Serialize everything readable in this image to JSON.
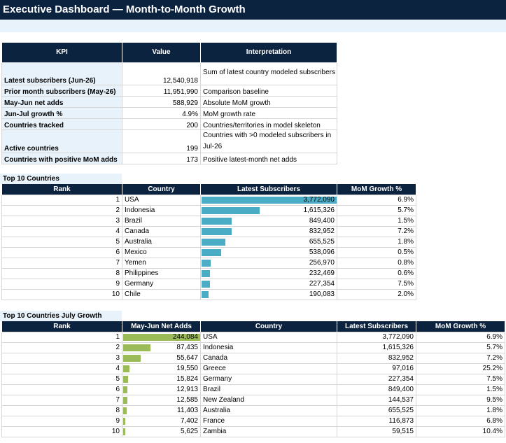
{
  "title": "Executive Dashboard — Month-to-Month Growth",
  "kpi": {
    "headers": [
      "KPI",
      "Value",
      "Interpretation"
    ],
    "rows": [
      {
        "label": "Latest subscribers (Jun-26)",
        "value": "12,540,918",
        "note": "Sum of latest country modeled subscribers"
      },
      {
        "label": "Prior month subscribers (May-26)",
        "value": "11,951,990",
        "note": "Comparison baseline"
      },
      {
        "label": "May-Jun net adds",
        "value": "588,929",
        "note": "Absolute MoM growth"
      },
      {
        "label": "Jun-Jul growth %",
        "value": "4.9%",
        "note": "MoM growth rate"
      },
      {
        "label": "Countries tracked",
        "value": "200",
        "note": "Countries/territories in model skeleton"
      },
      {
        "label": "Active countries",
        "value": "199",
        "note": "Countries with >0 modeled subscribers in",
        "note2": "Jul-26"
      },
      {
        "label": "Countries with positive MoM adds",
        "value": "173",
        "note": "Positive latest-month net adds"
      }
    ]
  },
  "top10": {
    "title": "Top 10 Countries",
    "headers": [
      "Rank",
      "Country",
      "Latest Subscribers",
      "MoM Growth %"
    ],
    "rows": [
      {
        "rank": "1",
        "country": "USA",
        "subs": "3,772,090",
        "subs_value": 3772090,
        "growth": "6.9%"
      },
      {
        "rank": "2",
        "country": "Indonesia",
        "subs": "1,615,326",
        "subs_value": 1615326,
        "growth": "5.7%"
      },
      {
        "rank": "3",
        "country": "Brazil",
        "subs": "849,400",
        "subs_value": 849400,
        "growth": "1.5%"
      },
      {
        "rank": "4",
        "country": "Canada",
        "subs": "832,952",
        "subs_value": 832952,
        "growth": "7.2%"
      },
      {
        "rank": "5",
        "country": "Australia",
        "subs": "655,525",
        "subs_value": 655525,
        "growth": "1.8%"
      },
      {
        "rank": "6",
        "country": "Mexico",
        "subs": "538,096",
        "subs_value": 538096,
        "growth": "0.5%"
      },
      {
        "rank": "7",
        "country": "Yemen",
        "subs": "256,970",
        "subs_value": 256970,
        "growth": "0.8%"
      },
      {
        "rank": "8",
        "country": "Philippines",
        "subs": "232,469",
        "subs_value": 232469,
        "growth": "0.6%"
      },
      {
        "rank": "9",
        "country": "Germany",
        "subs": "227,354",
        "subs_value": 227354,
        "growth": "7.5%"
      },
      {
        "rank": "10",
        "country": "Chile",
        "subs": "190,083",
        "subs_value": 190083,
        "growth": "2.0%"
      }
    ]
  },
  "growth10": {
    "title": "Top 10 Countries July Growth",
    "headers": [
      "Rank",
      "May-Jun Net Adds",
      "Country",
      "Latest Subscribers",
      "MoM Growth %"
    ],
    "rows": [
      {
        "rank": "1",
        "adds": "244,084",
        "adds_value": 244084,
        "country": "USA",
        "subs": "3,772,090",
        "growth": "6.9%"
      },
      {
        "rank": "2",
        "adds": "87,435",
        "adds_value": 87435,
        "country": "Indonesia",
        "subs": "1,615,326",
        "growth": "5.7%"
      },
      {
        "rank": "3",
        "adds": "55,647",
        "adds_value": 55647,
        "country": "Canada",
        "subs": "832,952",
        "growth": "7.2%"
      },
      {
        "rank": "4",
        "adds": "19,550",
        "adds_value": 19550,
        "country": "Greece",
        "subs": "97,016",
        "growth": "25.2%"
      },
      {
        "rank": "5",
        "adds": "15,824",
        "adds_value": 15824,
        "country": "Germany",
        "subs": "227,354",
        "growth": "7.5%"
      },
      {
        "rank": "6",
        "adds": "12,913",
        "adds_value": 12913,
        "country": "Brazil",
        "subs": "849,400",
        "growth": "1.5%"
      },
      {
        "rank": "7",
        "adds": "12,585",
        "adds_value": 12585,
        "country": "New Zealand",
        "subs": "144,537",
        "growth": "9.5%"
      },
      {
        "rank": "8",
        "adds": "11,403",
        "adds_value": 11403,
        "country": "Australia",
        "subs": "655,525",
        "growth": "1.8%"
      },
      {
        "rank": "9",
        "adds": "7,402",
        "adds_value": 7402,
        "country": "France",
        "subs": "116,873",
        "growth": "6.8%"
      },
      {
        "rank": "10",
        "adds": "5,625",
        "adds_value": 5625,
        "country": "Zambia",
        "subs": "59,515",
        "growth": "10.4%"
      }
    ]
  },
  "colors": {
    "header_bg": "#0c2340",
    "label_bg": "#e8f2fa",
    "bar_blue": "#4bacc6",
    "bar_green": "#9bbb59"
  }
}
